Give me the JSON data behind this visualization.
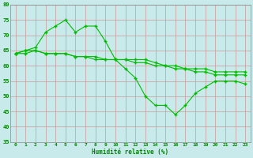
{
  "title": "",
  "xlabel": "Humidité relative (%)",
  "ylabel": "",
  "background_color": "#c8eaea",
  "grid_color": "#aacccc",
  "line_color": "#00bb00",
  "xlim": [
    -0.5,
    23.5
  ],
  "ylim": [
    35,
    80
  ],
  "yticks": [
    35,
    40,
    45,
    50,
    55,
    60,
    65,
    70,
    75,
    80
  ],
  "xticks": [
    0,
    1,
    2,
    3,
    4,
    5,
    6,
    7,
    8,
    9,
    10,
    11,
    12,
    13,
    14,
    15,
    16,
    17,
    18,
    19,
    20,
    21,
    22,
    23
  ],
  "series1": [
    64,
    65,
    66,
    71,
    73,
    75,
    71,
    73,
    73,
    68,
    62,
    59,
    56,
    50,
    47,
    47,
    44,
    47,
    51,
    53,
    55,
    55,
    55,
    54
  ],
  "series2": [
    64,
    65,
    65,
    64,
    64,
    64,
    63,
    63,
    63,
    62,
    62,
    62,
    61,
    61,
    60,
    60,
    59,
    59,
    58,
    58,
    57,
    57,
    57,
    57
  ],
  "series3": [
    64,
    64,
    65,
    64,
    64,
    64,
    63,
    63,
    62,
    62,
    62,
    62,
    62,
    62,
    61,
    60,
    60,
    59,
    59,
    59,
    58,
    58,
    58,
    58
  ]
}
